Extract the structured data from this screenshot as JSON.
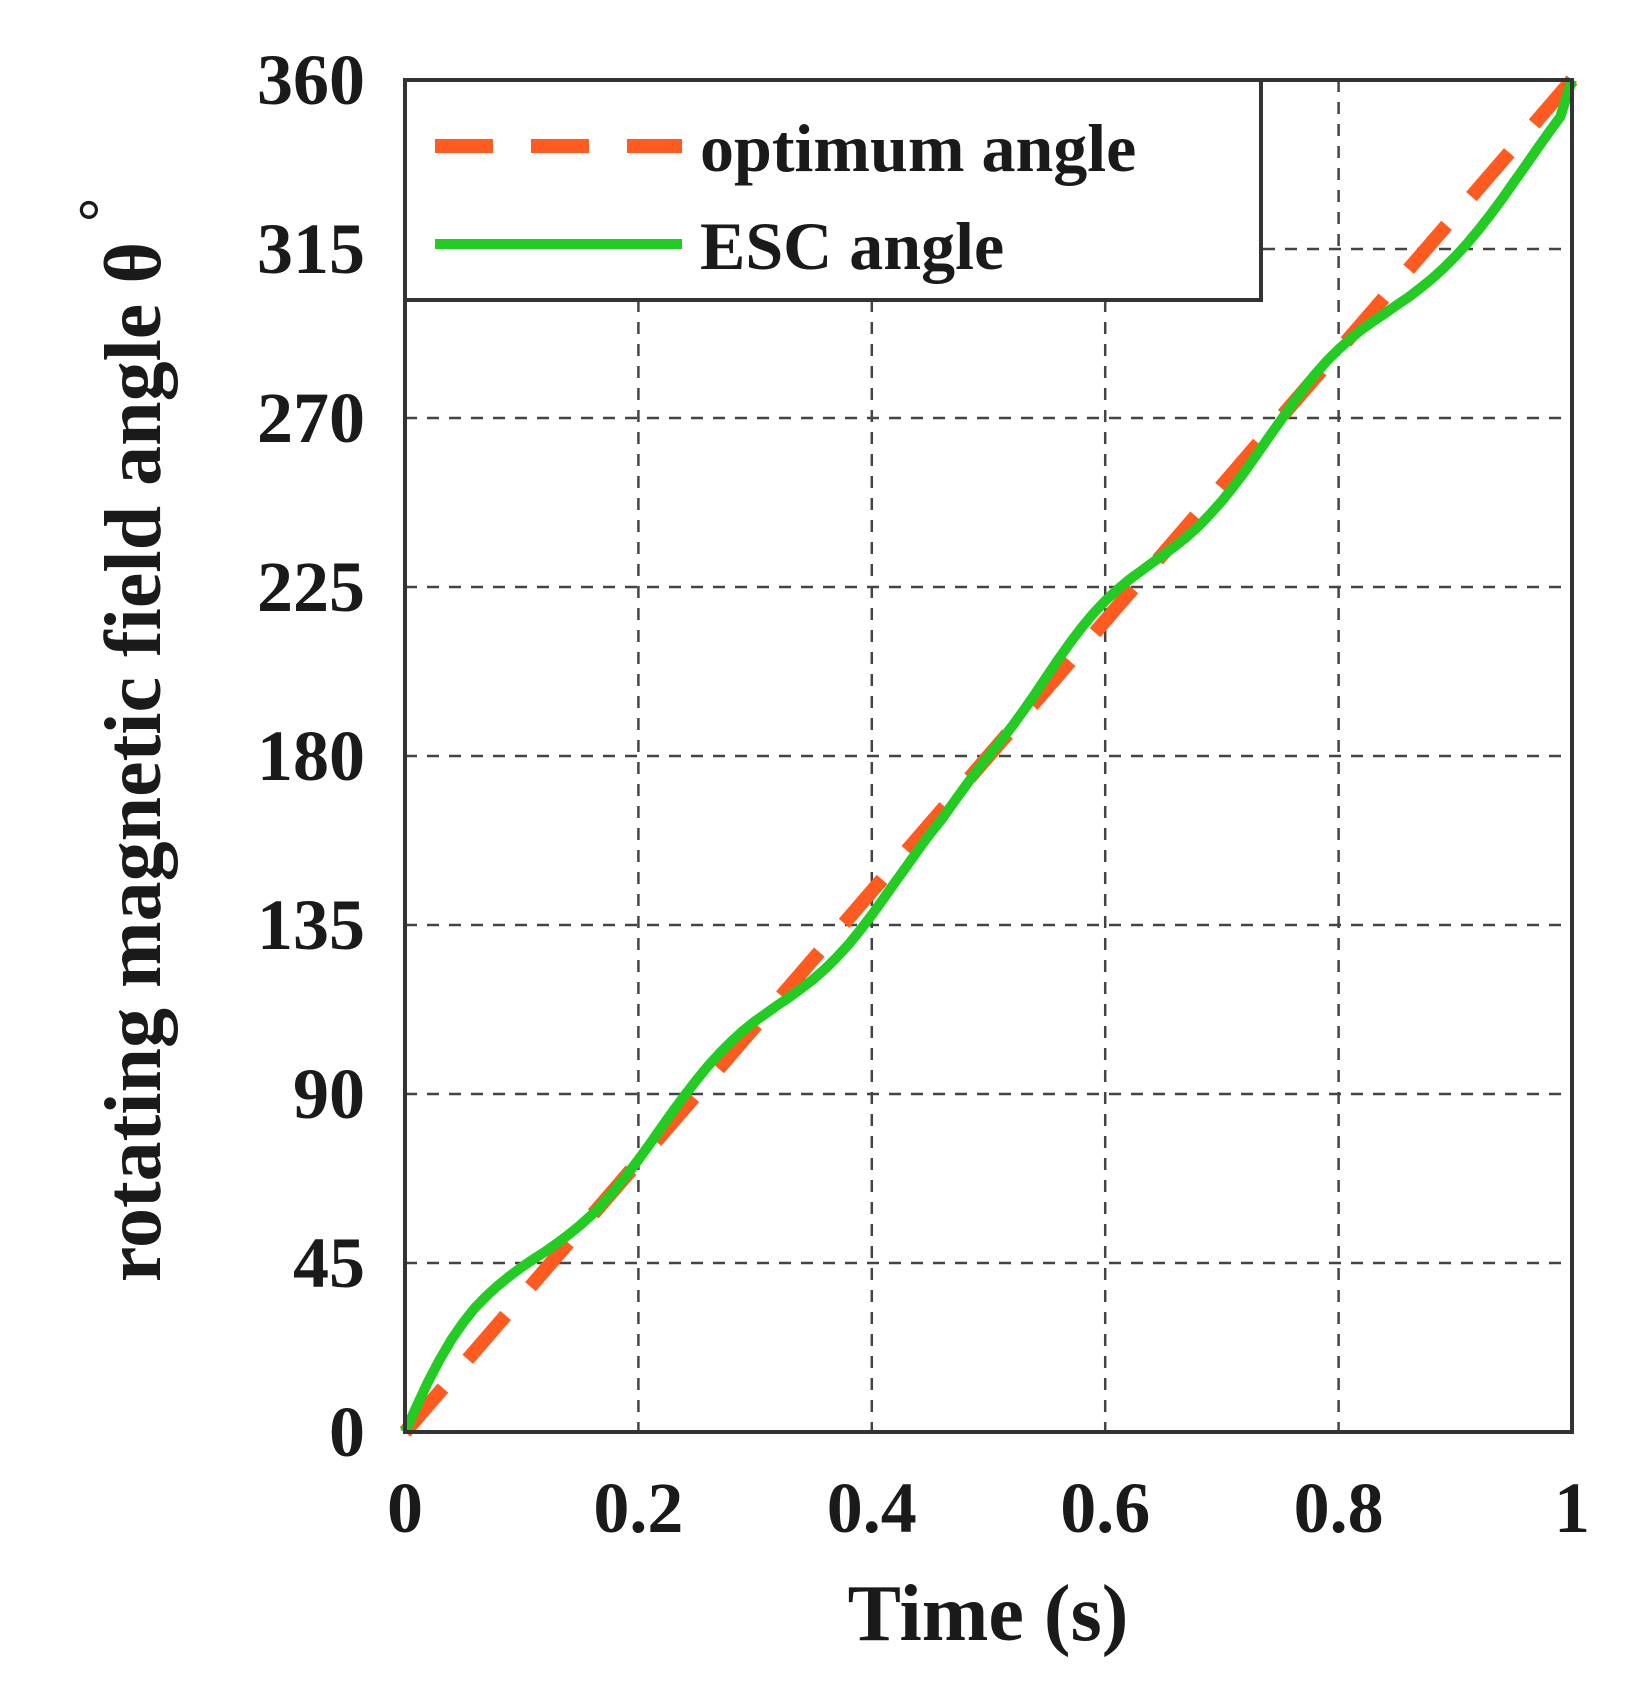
{
  "chart_data": {
    "type": "line",
    "xlabel": "Time (s)",
    "ylabel": "rotating magnetic field angle θ",
    "ylabel_unit": "°",
    "xlim": [
      0,
      1
    ],
    "ylim": [
      0,
      360
    ],
    "xticks": [
      0,
      0.2,
      0.4,
      0.6,
      0.8,
      1
    ],
    "xtick_labels": [
      "0",
      "0.2",
      "0.4",
      "0.6",
      "0.8",
      "1"
    ],
    "yticks": [
      0,
      45,
      90,
      135,
      180,
      225,
      270,
      315,
      360
    ],
    "ytick_labels": [
      "0",
      "45",
      "90",
      "135",
      "180",
      "225",
      "270",
      "315",
      "360"
    ],
    "grid": true,
    "legend_position": "top-left",
    "series": [
      {
        "name": "optimum angle",
        "style": "dashed",
        "color": "#FF5A1F",
        "x": [
          0,
          1
        ],
        "y": [
          0,
          360
        ]
      },
      {
        "name": "ESC angle",
        "style": "solid",
        "color": "#22CC22",
        "x": [
          0,
          0.01,
          0.02,
          0.03,
          0.04,
          0.05,
          0.06,
          0.07,
          0.08,
          0.09,
          0.1,
          0.11,
          0.12,
          0.13,
          0.14,
          0.15,
          0.16,
          0.17,
          0.18,
          0.19,
          0.2,
          0.21,
          0.22,
          0.23,
          0.24,
          0.25,
          0.26,
          0.27,
          0.28,
          0.29,
          0.3,
          0.31,
          0.32,
          0.33,
          0.34,
          0.35,
          0.36,
          0.37,
          0.38,
          0.39,
          0.4,
          0.41,
          0.42,
          0.43,
          0.44,
          0.45,
          0.46,
          0.47,
          0.48,
          0.49,
          0.5,
          0.51,
          0.52,
          0.53,
          0.54,
          0.55,
          0.56,
          0.57,
          0.58,
          0.59,
          0.6,
          0.61,
          0.62,
          0.63,
          0.64,
          0.65,
          0.66,
          0.67,
          0.68,
          0.69,
          0.7,
          0.71,
          0.72,
          0.73,
          0.74,
          0.75,
          0.76,
          0.77,
          0.78,
          0.79,
          0.8,
          0.81,
          0.82,
          0.83,
          0.84,
          0.85,
          0.86,
          0.87,
          0.88,
          0.89,
          0.9,
          0.91,
          0.92,
          0.93,
          0.94,
          0.95,
          0.96,
          0.97,
          0.98,
          0.99,
          1
        ],
        "y": [
          0,
          6.9,
          13.5,
          19.4,
          24.7,
          29.2,
          33.1,
          36.3,
          39.1,
          41.6,
          43.9,
          46.0,
          48.0,
          50.2,
          52.5,
          55.0,
          57.8,
          61.0,
          64.6,
          68.4,
          72.5,
          76.8,
          81.2,
          85.6,
          89.8,
          93.8,
          97.6,
          101.0,
          104.1,
          106.9,
          109.4,
          111.6,
          113.8,
          115.9,
          118.2,
          120.6,
          123.3,
          126.4,
          129.8,
          133.6,
          137.7,
          142.0,
          146.4,
          150.7,
          155.1,
          159.3,
          163.2,
          167.6,
          171.9,
          176.1,
          180.0,
          183.8,
          187.8,
          192.1,
          196.6,
          201.2,
          205.8,
          210.2,
          214.3,
          218.0,
          221.3,
          224.2,
          226.8,
          229.1,
          231.4,
          233.6,
          235.9,
          238.4,
          241.2,
          244.4,
          247.9,
          251.8,
          255.9,
          260.3,
          264.8,
          269.2,
          273.6,
          277.8,
          281.7,
          285.2,
          288.3,
          291.1,
          293.6,
          295.8,
          297.9,
          300.1,
          302.2,
          304.6,
          307.1,
          309.9,
          313.0,
          316.4,
          320.1,
          324.1,
          328.3,
          332.7,
          337.1,
          341.6,
          346.0,
          350.2,
          360.0
        ]
      }
    ]
  }
}
